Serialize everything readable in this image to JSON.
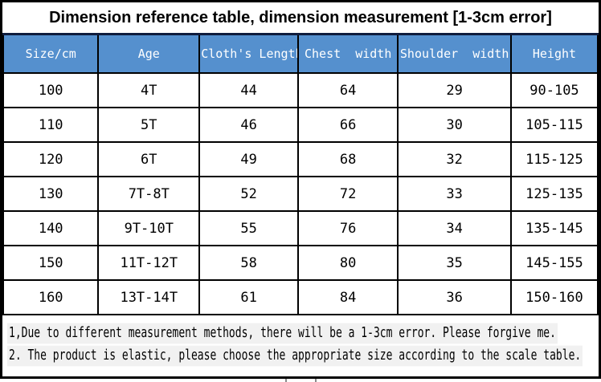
{
  "title": "Dimension reference table, dimension measurement [1-3cm error]",
  "chart_data": {
    "type": "table",
    "title": "Dimension reference table, dimension measurement [1-3cm error]",
    "columns": [
      "Size/cm",
      "Age",
      "Cloth's Length",
      "Chest  width",
      "Shoulder  width",
      "Height"
    ],
    "rows": [
      [
        "100",
        "4T",
        "44",
        "64",
        "29",
        "90-105"
      ],
      [
        "110",
        "5T",
        "46",
        "66",
        "30",
        "105-115"
      ],
      [
        "120",
        "6T",
        "49",
        "68",
        "32",
        "115-125"
      ],
      [
        "130",
        "7T-8T",
        "52",
        "72",
        "33",
        "125-135"
      ],
      [
        "140",
        "9T-10T",
        "55",
        "76",
        "34",
        "135-145"
      ],
      [
        "150",
        "11T-12T",
        "58",
        "80",
        "35",
        "145-155"
      ],
      [
        "160",
        "13T-14T",
        "61",
        "84",
        "36",
        "150-160"
      ]
    ]
  },
  "notes": [
    "1,Due to different measurement methods, there will be a 1-3cm error. Please forgive me.",
    "2. The product is elastic, please choose the appropriate size according to the scale table."
  ],
  "colors": {
    "header_bg": "#5590CE",
    "header_text": "#FFFFFF",
    "grid_border": "#000000",
    "title_header_separator": "#0F1C3D",
    "note_highlight": "#F1F1F1",
    "page_bg": "#FFFFFF"
  }
}
